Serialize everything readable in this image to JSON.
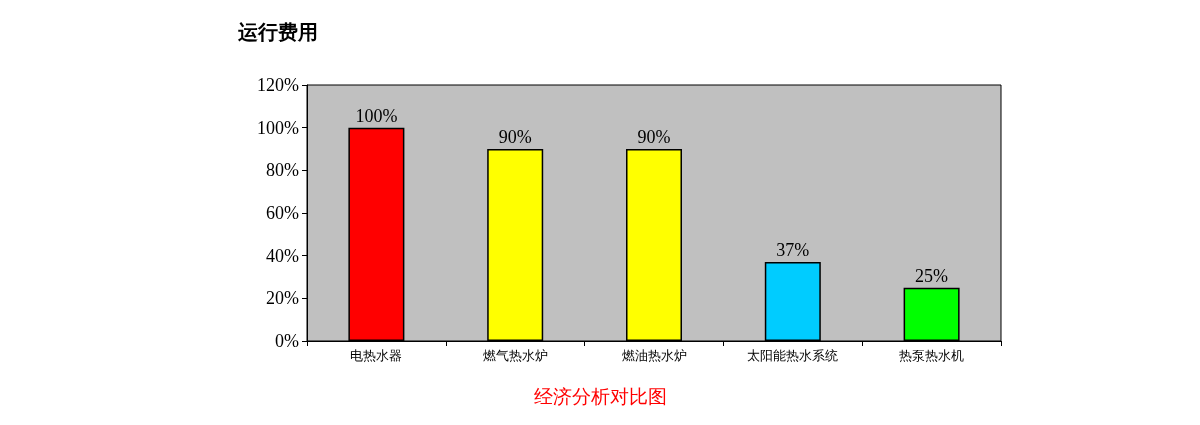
{
  "chart_data": {
    "type": "bar",
    "title": "运行费用",
    "annotations": [
      "经济分析对比图"
    ],
    "categories": [
      "电热水器",
      "燃气热水炉",
      "燃油热水炉",
      "太阳能热水系统",
      "热泵热水机"
    ],
    "values": [
      100,
      90,
      90,
      37,
      25
    ],
    "colors": [
      "#ff0000",
      "#ffff00",
      "#ffff00",
      "#00ccff",
      "#00ff00"
    ],
    "value_labels": [
      "100%",
      "90%",
      "90%",
      "37%",
      "25%"
    ],
    "ylim": [
      0,
      120
    ],
    "yticks": [
      {
        "value": 0,
        "label": "0%"
      },
      {
        "value": 20,
        "label": "20%"
      },
      {
        "value": 40,
        "label": "40%"
      },
      {
        "value": 60,
        "label": "60%"
      },
      {
        "value": 80,
        "label": "80%"
      },
      {
        "value": 100,
        "label": "100%"
      },
      {
        "value": 120,
        "label": "120%"
      }
    ],
    "grid": false
  }
}
